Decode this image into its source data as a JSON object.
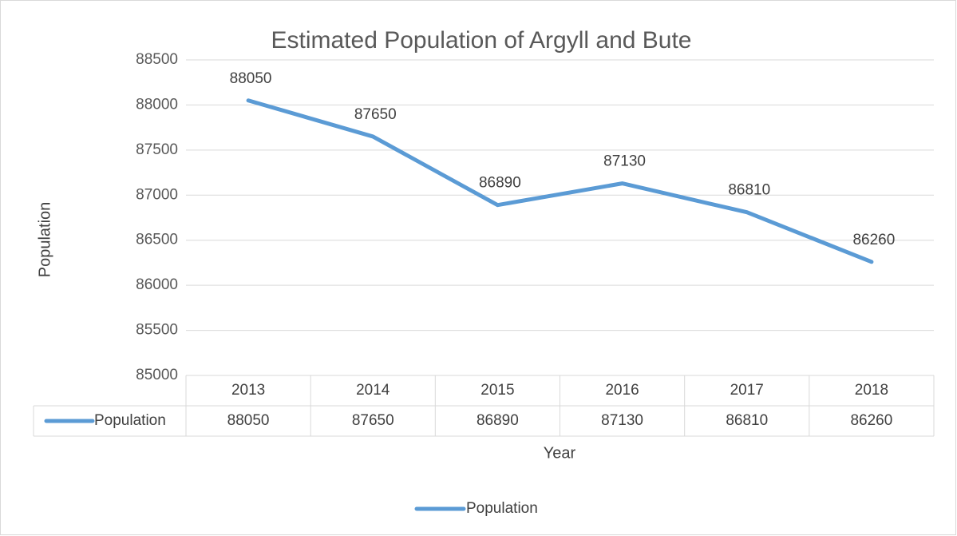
{
  "chart_data": {
    "type": "line",
    "title": "Estimated Population of Argyll and Bute",
    "x_label": "Year",
    "y_label": "Population",
    "categories": [
      "2013",
      "2014",
      "2015",
      "2016",
      "2017",
      "2018"
    ],
    "series": [
      {
        "name": "Population",
        "color": "#5b9bd5",
        "values": [
          88050,
          87650,
          86890,
          87130,
          86810,
          86260
        ]
      }
    ],
    "ylim": [
      85000,
      88500
    ],
    "yticks": [
      85000,
      85500,
      86000,
      86500,
      87000,
      87500,
      88000,
      88500
    ],
    "grid": true,
    "legend": "bottom",
    "data_labels": true,
    "data_table": true
  }
}
